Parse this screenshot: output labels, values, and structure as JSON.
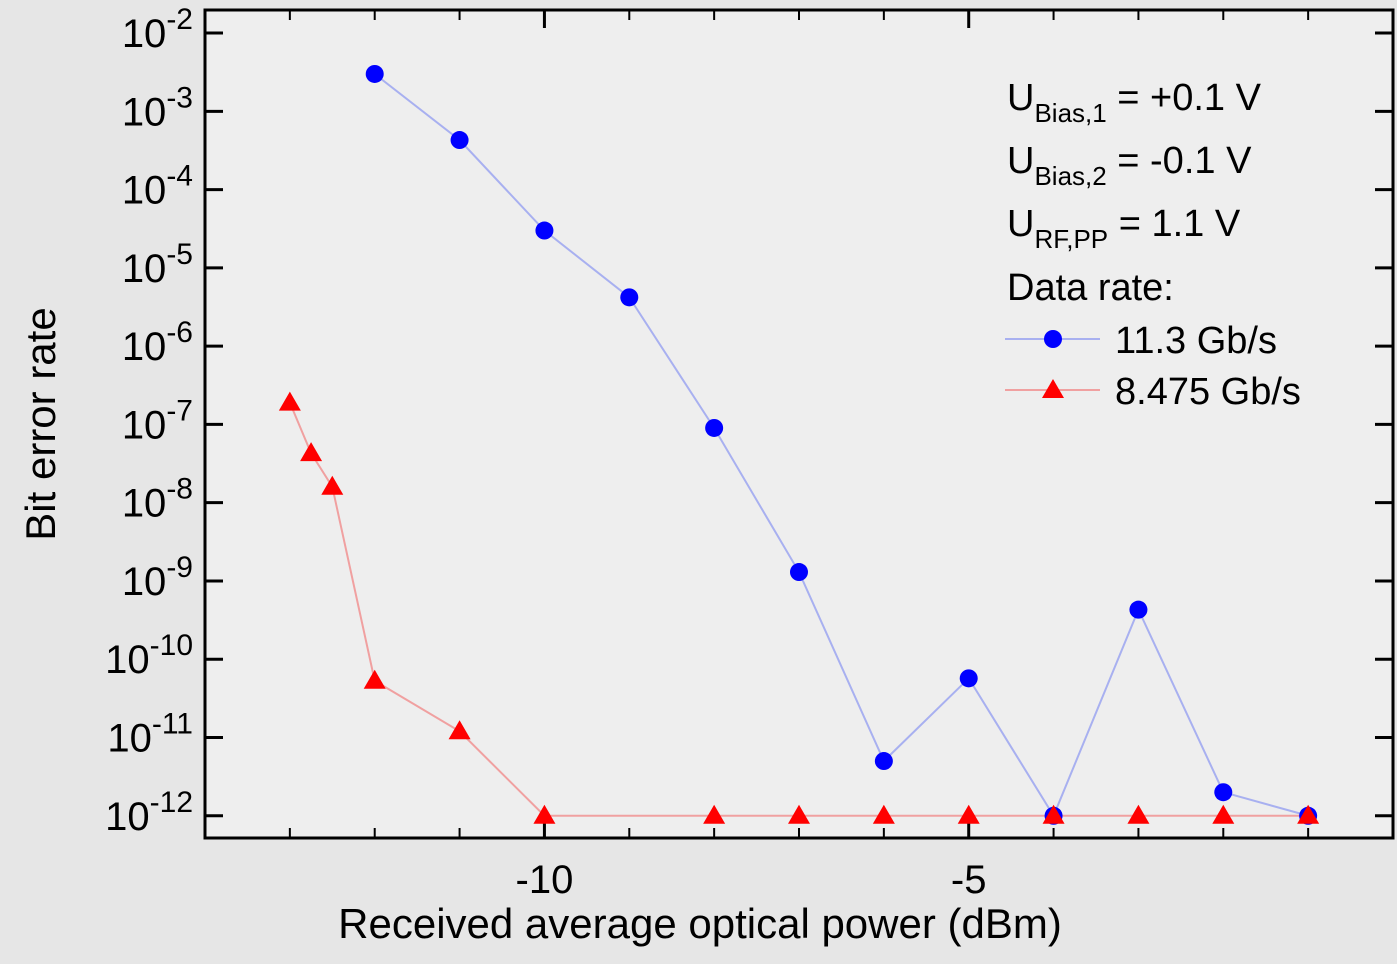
{
  "chart_data": {
    "type": "line",
    "xlabel": "Received average optical power (dBm)",
    "ylabel": "Bit error rate",
    "xlim": [
      -14,
      0
    ],
    "xticks": [
      -10,
      -5
    ],
    "x_minor_step": 1,
    "ylim": [
      5.2e-13,
      0.0197
    ],
    "ylog": true,
    "yticks": [
      {
        "value": 1e-12,
        "label": "10^-12"
      },
      {
        "value": 1e-11,
        "label": "10^-11"
      },
      {
        "value": 1e-10,
        "label": "10^-10"
      },
      {
        "value": 1e-09,
        "label": "10^-9"
      },
      {
        "value": 1e-08,
        "label": "10^-8"
      },
      {
        "value": 1e-07,
        "label": "10^-7"
      },
      {
        "value": 1e-06,
        "label": "10^-6"
      },
      {
        "value": 1e-05,
        "label": "10^-5"
      },
      {
        "value": 0.0001,
        "label": "10^-4"
      },
      {
        "value": 0.001,
        "label": "10^-3"
      },
      {
        "value": 0.01,
        "label": "10^-2"
      }
    ],
    "annotations": [
      {
        "main": "U",
        "sub": "Bias,1",
        "rest": " = +0.1 V"
      },
      {
        "main": "U",
        "sub": "Bias,2",
        "rest": " = -0.1 V"
      },
      {
        "main": "U",
        "sub": "RF,PP",
        "rest": " = 1.1 V"
      }
    ],
    "legend_title": "Data rate:",
    "legend_position": "upper right",
    "series": [
      {
        "name": "11.3 Gb/s",
        "color": "#0000ff",
        "line_color": "#a8b0f0",
        "marker": "circle",
        "x": [
          -12,
          -11,
          -10,
          -9,
          -8,
          -7,
          -6,
          -5,
          -4,
          -3,
          -2,
          -1
        ],
        "values": [
          0.003,
          0.00043,
          3e-05,
          4.2e-06,
          9e-08,
          1.3e-09,
          5e-12,
          5.7e-11,
          1e-12,
          4.3e-10,
          2e-12,
          1e-12
        ]
      },
      {
        "name": "8.475 Gb/s",
        "color": "#ff0000",
        "line_color": "#f0a0a0",
        "marker": "triangle",
        "x": [
          -13,
          -12.75,
          -12.5,
          -12,
          -11,
          -10,
          -8,
          -7,
          -6,
          -5,
          -4,
          -3,
          -2,
          -1
        ],
        "values": [
          1.9e-07,
          4.3e-08,
          1.6e-08,
          5.3e-11,
          1.2e-11,
          1e-12,
          1e-12,
          1e-12,
          1e-12,
          1e-12,
          1e-12,
          1e-12,
          1e-12,
          1e-12
        ]
      }
    ]
  }
}
